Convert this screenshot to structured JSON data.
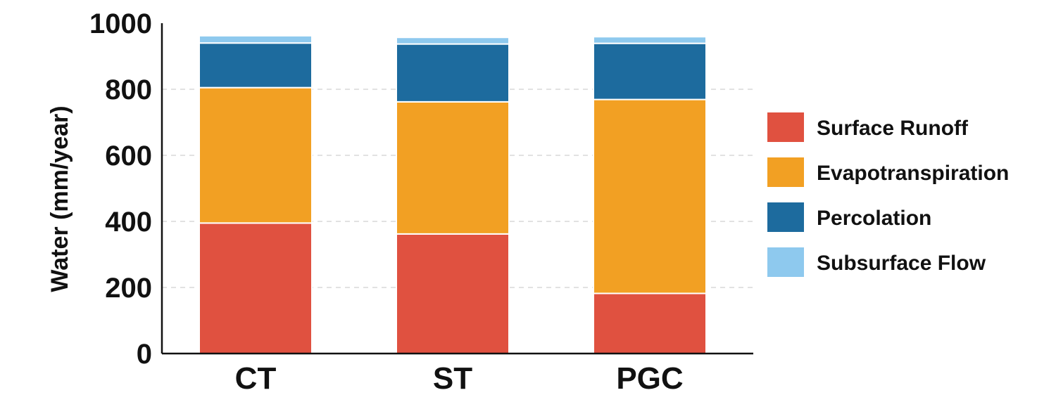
{
  "chart_data": {
    "type": "bar",
    "stacked": true,
    "categories": [
      "CT",
      "ST",
      "PGC"
    ],
    "series": [
      {
        "name": "Surface Runoff",
        "color": "#e05140",
        "values": [
          395,
          362,
          182
        ]
      },
      {
        "name": "Evapotranspiration",
        "color": "#f2a023",
        "values": [
          410,
          400,
          587
        ]
      },
      {
        "name": "Percolation",
        "color": "#1d6b9e",
        "values": [
          135,
          175,
          170
        ]
      },
      {
        "name": "Subsurface Flow",
        "color": "#8ec9ee",
        "values": [
          22,
          20,
          20
        ]
      }
    ],
    "title": "",
    "xlabel": "",
    "ylabel": "Water (mm/year)",
    "ylim": [
      0,
      1000
    ],
    "yticks": [
      0,
      200,
      400,
      600,
      800,
      1000
    ],
    "grid": "horizontal dashed",
    "legend": {
      "position": "right",
      "order": [
        "Surface Runoff",
        "Evapotranspiration",
        "Percolation",
        "Subsurface Flow"
      ]
    }
  }
}
